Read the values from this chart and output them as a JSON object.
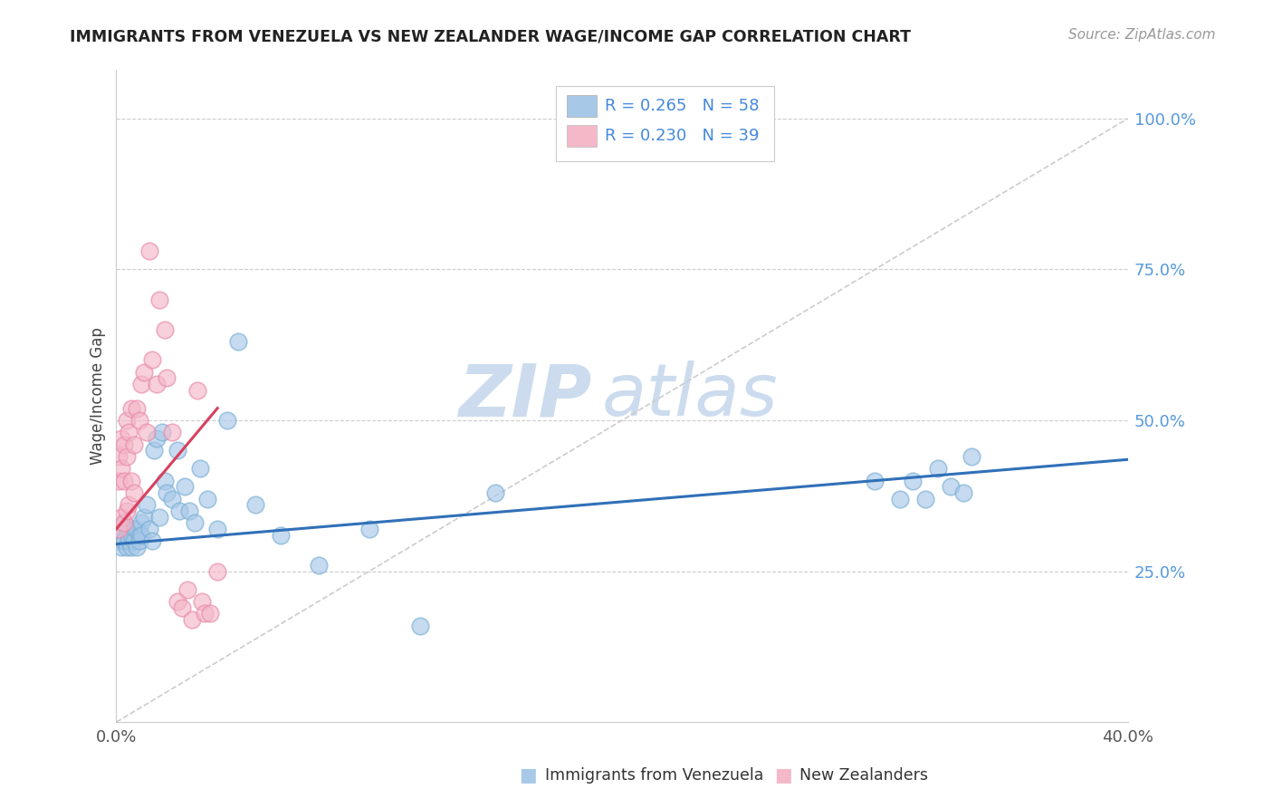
{
  "title": "IMMIGRANTS FROM VENEZUELA VS NEW ZEALANDER WAGE/INCOME GAP CORRELATION CHART",
  "source": "Source: ZipAtlas.com",
  "ylabel": "Wage/Income Gap",
  "xlim": [
    0.0,
    0.4
  ],
  "ylim": [
    0.0,
    1.08
  ],
  "blue_color": "#a8c8e8",
  "blue_edge": "#7aafd4",
  "pink_color": "#f4b8c8",
  "pink_edge": "#e88aaa",
  "trend_blue": "#3070b8",
  "trend_pink": "#d84060",
  "ref_line_color": "#cccccc",
  "watermark_color": "#ccdcee",
  "right_tick_color": "#5599dd",
  "legend_text_color": "#4488dd",
  "legend_n_color": "#4488dd",
  "blue_x": [
    0.001,
    0.001,
    0.002,
    0.002,
    0.002,
    0.003,
    0.003,
    0.003,
    0.004,
    0.004,
    0.005,
    0.005,
    0.005,
    0.006,
    0.006,
    0.007,
    0.007,
    0.008,
    0.008,
    0.009,
    0.009,
    0.01,
    0.01,
    0.011,
    0.012,
    0.013,
    0.014,
    0.015,
    0.016,
    0.017,
    0.018,
    0.019,
    0.02,
    0.022,
    0.024,
    0.025,
    0.027,
    0.029,
    0.031,
    0.033,
    0.036,
    0.04,
    0.044,
    0.048,
    0.055,
    0.065,
    0.08,
    0.1,
    0.12,
    0.15,
    0.3,
    0.31,
    0.315,
    0.32,
    0.325,
    0.33,
    0.335,
    0.338
  ],
  "blue_y": [
    0.3,
    0.31,
    0.29,
    0.32,
    0.31,
    0.3,
    0.33,
    0.3,
    0.32,
    0.29,
    0.31,
    0.3,
    0.32,
    0.31,
    0.29,
    0.32,
    0.3,
    0.32,
    0.29,
    0.31,
    0.3,
    0.33,
    0.31,
    0.34,
    0.36,
    0.32,
    0.3,
    0.45,
    0.47,
    0.34,
    0.48,
    0.4,
    0.38,
    0.37,
    0.45,
    0.35,
    0.39,
    0.35,
    0.33,
    0.42,
    0.37,
    0.32,
    0.5,
    0.63,
    0.36,
    0.31,
    0.26,
    0.32,
    0.16,
    0.38,
    0.4,
    0.37,
    0.4,
    0.37,
    0.42,
    0.39,
    0.38,
    0.44
  ],
  "pink_x": [
    0.001,
    0.001,
    0.001,
    0.002,
    0.002,
    0.002,
    0.003,
    0.003,
    0.003,
    0.004,
    0.004,
    0.004,
    0.005,
    0.005,
    0.006,
    0.006,
    0.007,
    0.007,
    0.008,
    0.009,
    0.01,
    0.011,
    0.012,
    0.013,
    0.014,
    0.016,
    0.017,
    0.019,
    0.02,
    0.022,
    0.024,
    0.026,
    0.028,
    0.03,
    0.032,
    0.034,
    0.035,
    0.037,
    0.04
  ],
  "pink_y": [
    0.32,
    0.4,
    0.44,
    0.34,
    0.42,
    0.47,
    0.33,
    0.4,
    0.46,
    0.35,
    0.44,
    0.5,
    0.36,
    0.48,
    0.4,
    0.52,
    0.38,
    0.46,
    0.52,
    0.5,
    0.56,
    0.58,
    0.48,
    0.78,
    0.6,
    0.56,
    0.7,
    0.65,
    0.57,
    0.48,
    0.2,
    0.19,
    0.22,
    0.17,
    0.55,
    0.2,
    0.18,
    0.18,
    0.25
  ],
  "blue_trend_x": [
    0.0,
    0.4
  ],
  "blue_trend_y": [
    0.295,
    0.435
  ],
  "pink_trend_x": [
    0.0,
    0.04
  ],
  "pink_trend_y": [
    0.32,
    0.52
  ]
}
